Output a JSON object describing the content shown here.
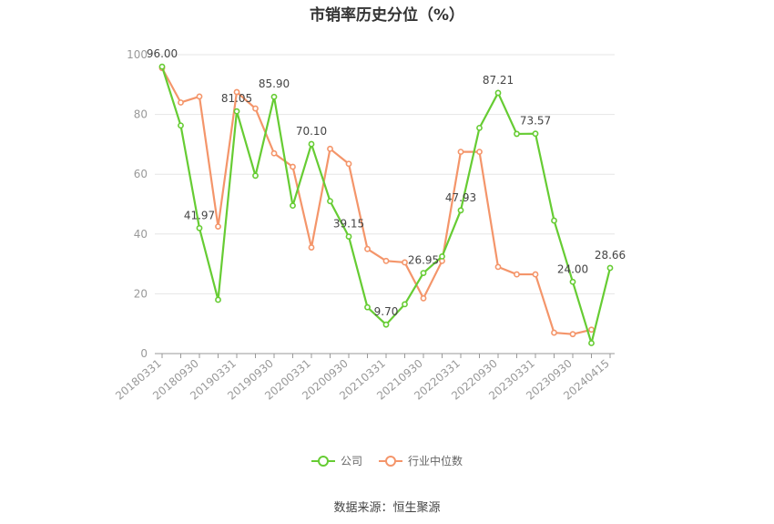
{
  "chart_data": {
    "type": "line",
    "title": "市销率历史分位（%）",
    "x": [
      "20180331",
      "20180630",
      "20180930",
      "20181231",
      "20190331",
      "20190630",
      "20190930",
      "20191231",
      "20200331",
      "20200630",
      "20200930",
      "20201231",
      "20210331",
      "20210630",
      "20210930",
      "20211231",
      "20220331",
      "20220630",
      "20220930",
      "20221231",
      "20230331",
      "20230630",
      "20230930",
      "20231231",
      "20240415"
    ],
    "x_tick_labels": [
      "20180331",
      "20180930",
      "20190331",
      "20190930",
      "20200331",
      "20200930",
      "20210331",
      "20210930",
      "20220331",
      "20220930",
      "20230331",
      "20230930",
      "20240415"
    ],
    "y_ticks": [
      0,
      20,
      40,
      60,
      80,
      100
    ],
    "ylim": [
      0,
      100
    ],
    "series": [
      {
        "name": "公司",
        "color": "#66cc33",
        "values": [
          96.0,
          76.3,
          41.97,
          18.0,
          81.05,
          59.5,
          85.9,
          49.5,
          70.1,
          51.0,
          39.15,
          15.5,
          9.7,
          16.5,
          26.95,
          32.5,
          47.93,
          75.5,
          87.21,
          73.5,
          73.57,
          44.5,
          24.0,
          3.5,
          28.66
        ],
        "labels": [
          "96.00",
          "",
          "41.97",
          "",
          "81.05",
          "",
          "85.90",
          "",
          "70.10",
          "",
          "39.15",
          "",
          "9.70",
          "",
          "26.95",
          "",
          "47.93",
          "",
          "87.21",
          "",
          "73.57",
          "",
          "24.00",
          "",
          "28.66"
        ]
      },
      {
        "name": "行业中位数",
        "color": "#f4956a",
        "values": [
          95.5,
          84.0,
          86.0,
          42.5,
          87.5,
          82.0,
          67.0,
          62.5,
          35.5,
          68.5,
          63.5,
          35.0,
          31.0,
          30.5,
          18.5,
          31.0,
          67.5,
          67.5,
          29.0,
          26.5,
          26.5,
          7.0,
          6.5,
          8.0,
          null
        ]
      }
    ],
    "grid": true,
    "legend_position": "bottom"
  },
  "source": "数据来源：恒生聚源"
}
